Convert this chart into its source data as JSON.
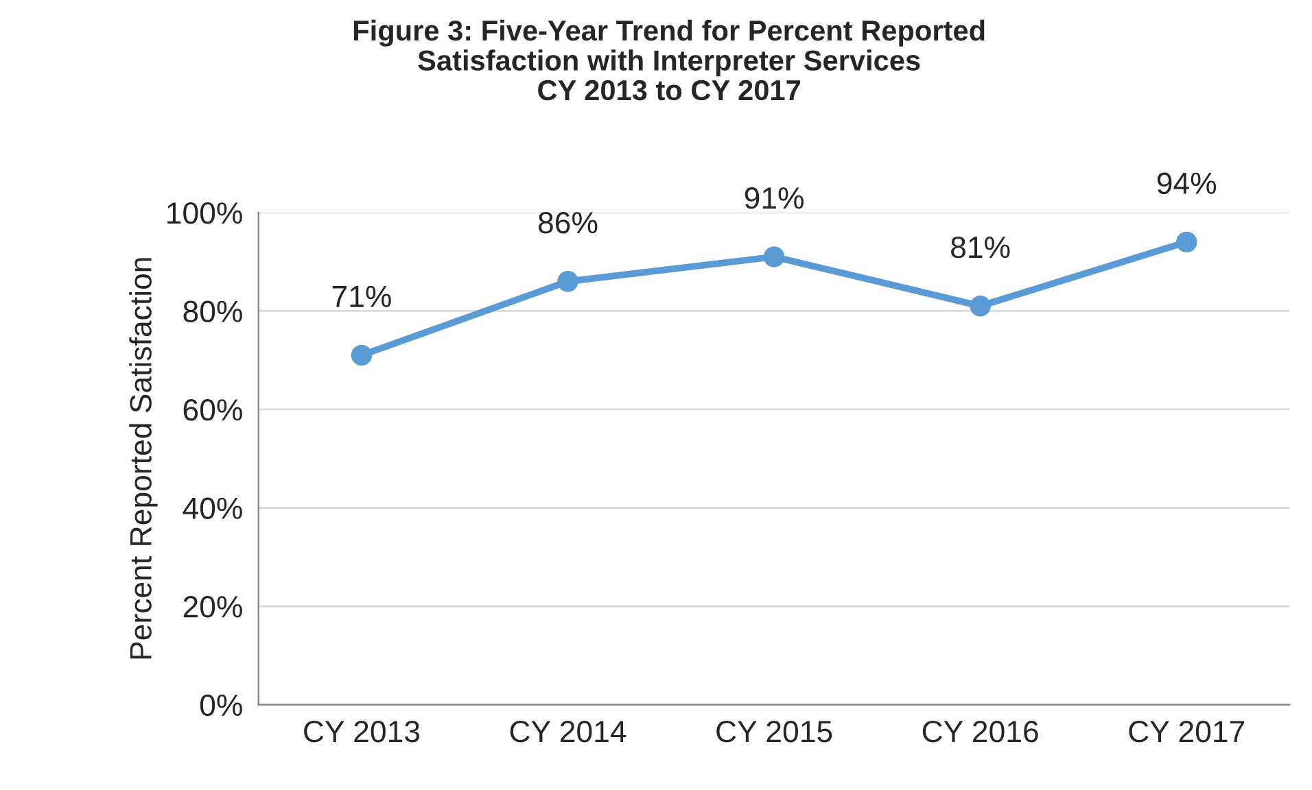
{
  "chart_data": {
    "type": "line",
    "title": "Figure 3: Five-Year Trend for Percent Reported\nSatisfaction with Interpreter Services\nCY 2013 to CY 2017",
    "ylabel": "Percent Reported Satisfaction",
    "categories": [
      "CY 2013",
      "CY 2014",
      "CY 2015",
      "CY 2016",
      "CY 2017"
    ],
    "series": [
      {
        "color": "#5b9bd5",
        "values": [
          71,
          86,
          91,
          81,
          94
        ],
        "value_labels": [
          "71%",
          "86%",
          "91%",
          "81%",
          "94%"
        ]
      }
    ],
    "ylim": [
      0,
      100
    ],
    "yticks": [
      {
        "value": 0,
        "label": "0%"
      },
      {
        "value": 20,
        "label": "20%"
      },
      {
        "value": 40,
        "label": "40%"
      },
      {
        "value": 60,
        "label": "60%"
      },
      {
        "value": 80,
        "label": "80%"
      },
      {
        "value": 100,
        "label": "100%"
      }
    ],
    "grid": "y",
    "marker": "circle",
    "line_style": "solid",
    "legend": false
  }
}
